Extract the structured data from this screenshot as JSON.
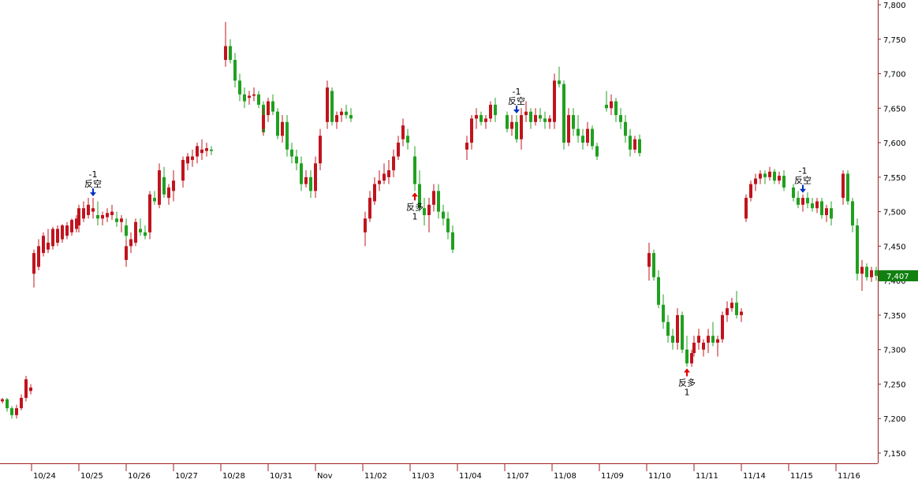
{
  "chart_data": {
    "type": "candlestick",
    "title": "",
    "xlabel": "",
    "ylabel": "",
    "ylim": [
      7125,
      7810
    ],
    "y_ticks": [
      "7,150",
      "7,200",
      "7,250",
      "7,300",
      "7,350",
      "7,400",
      "7,450",
      "7,500",
      "7,550",
      "7,600",
      "7,650",
      "7,700",
      "7,750",
      "7,800"
    ],
    "x_ticks": [
      "10/24",
      "10/25",
      "10/26",
      "10/27",
      "10/28",
      "10/31",
      "Nov",
      "11/02",
      "11/03",
      "11/04",
      "11/07",
      "11/08",
      "11/09",
      "11/10",
      "11/11",
      "11/14",
      "11/15",
      "11/16"
    ],
    "grid": false,
    "colors": {
      "up": "#c0141e",
      "down": "#20a020",
      "long_signal": "#e00000",
      "short_signal": "#0030c0",
      "last_price_bg": "#108010"
    },
    "last_price": "7,407",
    "days": [
      {
        "label": null,
        "candles": [
          [
            7225,
            7230,
            7222,
            7228
          ],
          [
            7228,
            7230,
            7210,
            7215
          ],
          [
            7215,
            7218,
            7200,
            7205
          ],
          [
            7205,
            7220,
            7200,
            7215
          ],
          [
            7215,
            7235,
            7212,
            7230
          ],
          [
            7230,
            7262,
            7225,
            7257
          ],
          [
            7240,
            7250,
            7235,
            7245
          ]
        ]
      },
      {
        "label": "10/24",
        "candles": [
          [
            7410,
            7445,
            7390,
            7440
          ],
          [
            7420,
            7460,
            7415,
            7450
          ],
          [
            7440,
            7470,
            7435,
            7465
          ],
          [
            7445,
            7475,
            7440,
            7455
          ],
          [
            7450,
            7478,
            7445,
            7475
          ],
          [
            7455,
            7480,
            7450,
            7475
          ],
          [
            7460,
            7482,
            7455,
            7480
          ],
          [
            7465,
            7485,
            7460,
            7480
          ],
          [
            7470,
            7490,
            7465,
            7488
          ],
          [
            7475,
            7495,
            7470,
            7490
          ]
        ]
      },
      {
        "label": "10/25",
        "candles": [
          [
            7480,
            7510,
            7470,
            7505
          ],
          [
            7490,
            7515,
            7485,
            7505
          ],
          [
            7495,
            7520,
            7490,
            7510
          ],
          [
            7500,
            7520,
            7490,
            7505
          ],
          [
            7495,
            7515,
            7480,
            7490
          ],
          [
            7490,
            7500,
            7480,
            7495
          ],
          [
            7492,
            7505,
            7485,
            7498
          ],
          [
            7495,
            7510,
            7488,
            7500
          ],
          [
            7490,
            7500,
            7478,
            7485
          ],
          [
            7485,
            7495,
            7470,
            7490
          ],
          [
            7480,
            7490,
            7460,
            7465
          ]
        ]
      },
      {
        "label": "10/26",
        "candles": [
          [
            7430,
            7460,
            7420,
            7450
          ],
          [
            7450,
            7470,
            7440,
            7460
          ],
          [
            7455,
            7490,
            7450,
            7485
          ],
          [
            7475,
            7490,
            7465,
            7470
          ],
          [
            7470,
            7480,
            7460,
            7465
          ],
          [
            7470,
            7530,
            7460,
            7525
          ],
          [
            7520,
            7530,
            7510,
            7515
          ],
          [
            7510,
            7570,
            7505,
            7560
          ],
          [
            7550,
            7565,
            7520,
            7525
          ],
          [
            7520,
            7540,
            7510,
            7535
          ],
          [
            7530,
            7560,
            7515,
            7545
          ]
        ]
      },
      {
        "label": "10/27",
        "candles": [
          [
            7545,
            7580,
            7535,
            7575
          ],
          [
            7570,
            7585,
            7560,
            7580
          ],
          [
            7575,
            7590,
            7565,
            7580
          ],
          [
            7580,
            7600,
            7570,
            7595
          ],
          [
            7585,
            7605,
            7575,
            7590
          ],
          [
            7588,
            7600,
            7580,
            7592
          ],
          [
            7590,
            7595,
            7582,
            7588
          ]
        ]
      },
      {
        "label": "10/28",
        "candles": [
          [
            7720,
            7775,
            7710,
            7740
          ],
          [
            7740,
            7750,
            7715,
            7720
          ],
          [
            7720,
            7730,
            7680,
            7690
          ],
          [
            7690,
            7700,
            7660,
            7670
          ],
          [
            7670,
            7680,
            7650,
            7660
          ],
          [
            7665,
            7675,
            7655,
            7668
          ],
          [
            7668,
            7680,
            7660,
            7670
          ],
          [
            7670,
            7675,
            7650,
            7655
          ],
          [
            7655,
            7660,
            7610,
            7615
          ]
        ]
      },
      {
        "label": "10/31",
        "candles": [
          [
            7620,
            7650,
            7610,
            7640
          ],
          [
            7640,
            7665,
            7630,
            7660
          ],
          [
            7660,
            7670,
            7640,
            7645
          ],
          [
            7645,
            7650,
            7605,
            7610
          ],
          [
            7610,
            7640,
            7600,
            7630
          ],
          [
            7630,
            7640,
            7580,
            7590
          ],
          [
            7590,
            7600,
            7570,
            7580
          ],
          [
            7580,
            7590,
            7560,
            7570
          ],
          [
            7570,
            7580,
            7530,
            7540
          ],
          [
            7540,
            7560,
            7535,
            7550
          ],
          [
            7550,
            7560,
            7520,
            7530
          ],
          [
            7530,
            7580,
            7520,
            7570
          ],
          [
            7570,
            7620,
            7560,
            7610
          ]
        ]
      },
      {
        "label": "Nov",
        "candles": [
          [
            7630,
            7690,
            7620,
            7680
          ],
          [
            7675,
            7680,
            7625,
            7630
          ],
          [
            7630,
            7645,
            7620,
            7640
          ],
          [
            7640,
            7650,
            7630,
            7645
          ],
          [
            7645,
            7655,
            7635,
            7640
          ],
          [
            7640,
            7650,
            7630,
            7635
          ]
        ]
      },
      {
        "label": "11/02",
        "candles": [
          [
            7470,
            7500,
            7450,
            7490
          ],
          [
            7490,
            7530,
            7485,
            7520
          ],
          [
            7515,
            7550,
            7510,
            7540
          ],
          [
            7540,
            7560,
            7530,
            7545
          ],
          [
            7545,
            7570,
            7540,
            7555
          ],
          [
            7550,
            7575,
            7540,
            7560
          ],
          [
            7560,
            7590,
            7550,
            7580
          ],
          [
            7580,
            7610,
            7575,
            7600
          ],
          [
            7605,
            7635,
            7595,
            7625
          ],
          [
            7610,
            7620,
            7590,
            7600
          ]
        ]
      },
      {
        "label": "11/03",
        "candles": [
          [
            7580,
            7595,
            7530,
            7540
          ],
          [
            7540,
            7560,
            7500,
            7505
          ],
          [
            7505,
            7520,
            7480,
            7495
          ],
          [
            7495,
            7520,
            7470,
            7510
          ],
          [
            7510,
            7540,
            7500,
            7530
          ],
          [
            7530,
            7540,
            7490,
            7500
          ],
          [
            7500,
            7510,
            7480,
            7490
          ],
          [
            7490,
            7500,
            7460,
            7470
          ],
          [
            7470,
            7480,
            7440,
            7445
          ]
        ]
      },
      {
        "label": "11/04",
        "candles": [
          [
            7590,
            7610,
            7575,
            7600
          ],
          [
            7600,
            7640,
            7590,
            7635
          ],
          [
            7635,
            7650,
            7620,
            7640
          ],
          [
            7640,
            7645,
            7625,
            7630
          ],
          [
            7630,
            7640,
            7620,
            7635
          ],
          [
            7635,
            7660,
            7630,
            7655
          ],
          [
            7655,
            7665,
            7630,
            7640
          ]
        ]
      },
      {
        "label": "11/07",
        "candles": [
          [
            7640,
            7645,
            7615,
            7620
          ],
          [
            7620,
            7640,
            7610,
            7630
          ],
          [
            7630,
            7640,
            7600,
            7605
          ],
          [
            7605,
            7650,
            7590,
            7640
          ],
          [
            7640,
            7660,
            7630,
            7645
          ],
          [
            7645,
            7650,
            7620,
            7630
          ],
          [
            7630,
            7650,
            7625,
            7640
          ],
          [
            7640,
            7650,
            7630,
            7635
          ],
          [
            7635,
            7645,
            7620,
            7630
          ],
          [
            7630,
            7640,
            7620,
            7635
          ]
        ]
      },
      {
        "label": "11/08",
        "candles": [
          [
            7630,
            7700,
            7620,
            7690
          ],
          [
            7690,
            7710,
            7680,
            7685
          ],
          [
            7685,
            7690,
            7590,
            7600
          ],
          [
            7600,
            7650,
            7595,
            7640
          ],
          [
            7640,
            7650,
            7610,
            7620
          ],
          [
            7620,
            7640,
            7600,
            7610
          ],
          [
            7610,
            7620,
            7590,
            7600
          ],
          [
            7600,
            7630,
            7595,
            7620
          ],
          [
            7620,
            7625,
            7590,
            7595
          ],
          [
            7595,
            7600,
            7575,
            7580
          ]
        ]
      },
      {
        "label": "11/09",
        "candles": [
          [
            7655,
            7675,
            7645,
            7650
          ],
          [
            7650,
            7670,
            7640,
            7660
          ],
          [
            7660,
            7665,
            7630,
            7640
          ],
          [
            7640,
            7650,
            7620,
            7630
          ],
          [
            7630,
            7640,
            7600,
            7610
          ],
          [
            7610,
            7620,
            7580,
            7590
          ],
          [
            7590,
            7610,
            7585,
            7605
          ],
          [
            7605,
            7612,
            7580,
            7585
          ]
        ]
      },
      {
        "label": "11/10",
        "candles": [
          [
            7420,
            7455,
            7400,
            7440
          ],
          [
            7440,
            7445,
            7400,
            7405
          ],
          [
            7405,
            7415,
            7360,
            7365
          ],
          [
            7365,
            7380,
            7330,
            7340
          ],
          [
            7340,
            7350,
            7310,
            7320
          ],
          [
            7320,
            7330,
            7300,
            7310
          ],
          [
            7310,
            7360,
            7300,
            7350
          ],
          [
            7350,
            7355,
            7295,
            7300
          ],
          [
            7300,
            7320,
            7275,
            7280
          ],
          [
            7280,
            7300,
            7275,
            7295
          ]
        ]
      },
      {
        "label": "11/11",
        "candles": [
          [
            7295,
            7320,
            7290,
            7310
          ],
          [
            7310,
            7330,
            7300,
            7320
          ],
          [
            7300,
            7315,
            7290,
            7310
          ],
          [
            7310,
            7330,
            7295,
            7320
          ],
          [
            7320,
            7340,
            7305,
            7310
          ],
          [
            7310,
            7320,
            7290,
            7315
          ],
          [
            7315,
            7355,
            7310,
            7350
          ],
          [
            7350,
            7370,
            7340,
            7360
          ],
          [
            7360,
            7375,
            7355,
            7368
          ],
          [
            7368,
            7385,
            7345,
            7350
          ],
          [
            7350,
            7360,
            7340,
            7355
          ]
        ]
      },
      {
        "label": "11/14",
        "candles": [
          [
            7490,
            7525,
            7485,
            7520
          ],
          [
            7520,
            7545,
            7515,
            7540
          ],
          [
            7540,
            7555,
            7530,
            7548
          ],
          [
            7548,
            7560,
            7540,
            7555
          ],
          [
            7555,
            7560,
            7540,
            7550
          ],
          [
            7550,
            7565,
            7545,
            7558
          ],
          [
            7558,
            7562,
            7540,
            7545
          ],
          [
            7545,
            7558,
            7540,
            7552
          ],
          [
            7552,
            7560,
            7530,
            7535
          ]
        ]
      },
      {
        "label": "11/15",
        "candles": [
          [
            7535,
            7540,
            7515,
            7520
          ],
          [
            7520,
            7530,
            7505,
            7510
          ],
          [
            7510,
            7525,
            7500,
            7520
          ],
          [
            7520,
            7528,
            7505,
            7512
          ],
          [
            7512,
            7520,
            7500,
            7505
          ],
          [
            7505,
            7520,
            7498,
            7515
          ],
          [
            7515,
            7520,
            7490,
            7495
          ],
          [
            7495,
            7510,
            7485,
            7505
          ],
          [
            7505,
            7515,
            7480,
            7490
          ]
        ]
      },
      {
        "label": "11/16",
        "candles": [
          [
            7520,
            7560,
            7510,
            7555
          ],
          [
            7555,
            7560,
            7510,
            7515
          ],
          [
            7515,
            7520,
            7470,
            7480
          ],
          [
            7480,
            7490,
            7400,
            7410
          ],
          [
            7410,
            7430,
            7385,
            7420
          ],
          [
            7420,
            7425,
            7400,
            7405
          ],
          [
            7405,
            7420,
            7398,
            7415
          ],
          [
            7415,
            7420,
            7400,
            7407
          ]
        ]
      }
    ],
    "annotations": [
      {
        "day": 3,
        "candle": 4,
        "dir": "short",
        "line1": "-1",
        "line2": "反空"
      },
      {
        "day": 10,
        "candle": 1,
        "dir": "long",
        "line1": "反多",
        "line2": "1"
      },
      {
        "day": 12,
        "candle": 3,
        "dir": "short",
        "line1": "-1",
        "line2": "反空"
      },
      {
        "day": 15,
        "candle": 9,
        "dir": "long",
        "line1": "反多",
        "line2": "1"
      },
      {
        "day": 18,
        "candle": 3,
        "dir": "short",
        "line1": "-1",
        "line2": "反空"
      }
    ]
  }
}
